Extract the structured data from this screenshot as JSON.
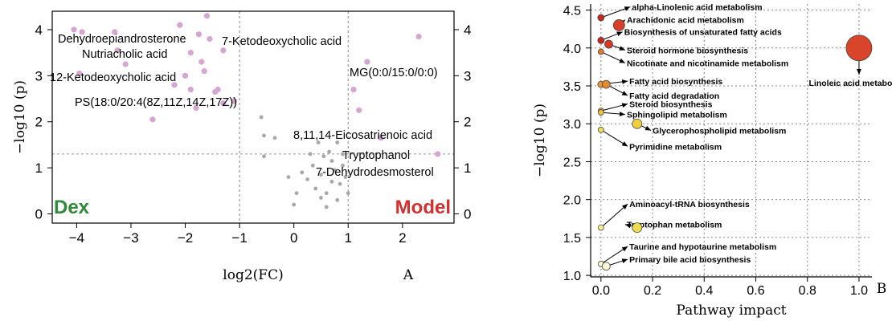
{
  "chart_data": [
    {
      "panel": "A",
      "type": "scatter",
      "xlabel": "log2(FC)",
      "ylabel": "−log10 (p)",
      "xlim": [
        -4.45,
        2.95
      ],
      "ylim": [
        -0.2,
        4.4
      ],
      "xticks": [
        -4,
        -3,
        -2,
        -1,
        0,
        1,
        2
      ],
      "yticks_left": [
        0,
        1,
        2,
        3,
        4
      ],
      "yticks_right": [
        0,
        1,
        2,
        3,
        4
      ],
      "vlines": [
        -1,
        1
      ],
      "hline": 1.3,
      "group_labels": [
        {
          "text": "Dex",
          "color": "#2e8b3a",
          "side": "left"
        },
        {
          "text": "Model",
          "color": "#d32f2f",
          "side": "right"
        }
      ],
      "significant_points": [
        [
          -4.05,
          4.0
        ],
        [
          -3.9,
          3.95
        ],
        [
          -3.3,
          3.95
        ],
        [
          -3.25,
          3.55
        ],
        [
          -3.95,
          3.05
        ],
        [
          -3.1,
          3.25
        ],
        [
          -2.6,
          2.05
        ],
        [
          -2.2,
          2.8
        ],
        [
          -2.0,
          3.0
        ],
        [
          -1.9,
          2.7
        ],
        [
          -1.9,
          3.5
        ],
        [
          -1.75,
          3.9
        ],
        [
          -1.6,
          4.3
        ],
        [
          -1.55,
          3.8
        ],
        [
          -1.65,
          3.1
        ],
        [
          -1.7,
          3.3
        ],
        [
          -1.45,
          2.65
        ],
        [
          -1.4,
          2.7
        ],
        [
          -1.3,
          2.4
        ],
        [
          -1.1,
          2.45
        ],
        [
          -1.8,
          2.3
        ],
        [
          -2.1,
          4.1
        ],
        [
          1.35,
          3.3
        ],
        [
          1.1,
          2.7
        ],
        [
          1.2,
          2.25
        ],
        [
          1.6,
          1.65
        ],
        [
          2.65,
          1.3
        ],
        [
          2.3,
          3.85
        ],
        [
          -1.3,
          3.55
        ]
      ],
      "nonsignificant_points": [
        [
          -0.6,
          2.1
        ],
        [
          -0.55,
          1.7
        ],
        [
          -0.35,
          1.65
        ],
        [
          -0.55,
          1.25
        ],
        [
          -0.1,
          0.8
        ],
        [
          0.0,
          0.2
        ],
        [
          0.05,
          0.45
        ],
        [
          0.15,
          0.9
        ],
        [
          0.25,
          0.75
        ],
        [
          0.35,
          1.05
        ],
        [
          0.4,
          0.55
        ],
        [
          0.5,
          0.85
        ],
        [
          0.55,
          1.25
        ],
        [
          0.6,
          0.45
        ],
        [
          0.65,
          1.35
        ],
        [
          0.7,
          0.7
        ],
        [
          0.75,
          0.95
        ],
        [
          0.8,
          0.3
        ],
        [
          0.8,
          1.55
        ],
        [
          0.85,
          0.65
        ],
        [
          0.9,
          1.05
        ],
        [
          0.95,
          0.8
        ],
        [
          1.0,
          0.45
        ],
        [
          0.6,
          0.15
        ],
        [
          0.3,
          1.3
        ],
        [
          0.45,
          1.55
        ],
        [
          0.7,
          1.15
        ],
        [
          0.9,
          1.3
        ],
        [
          0.5,
          0.35
        ]
      ],
      "annotations": [
        {
          "text": "Dehydroepiandrosterone",
          "x": -4.05,
          "y": 4.0
        },
        {
          "text": "Nutriacholic acid",
          "x": -3.25,
          "y": 3.55
        },
        {
          "text": "7-Ketodeoxycholic acid",
          "x": -1.6,
          "y": 4.3
        },
        {
          "text": "12-Ketodeoxycholic acid",
          "x": -3.95,
          "y": 3.05
        },
        {
          "text": "PS(18:0/20:4(8Z,11Z,14Z,17Z))",
          "x": -1.1,
          "y": 2.45
        },
        {
          "text": "MG(0:0/15:0/0:0)",
          "x": 2.3,
          "y": 3.85
        },
        {
          "text": "8,11,14-Eicosatrienoic acid",
          "x": 1.2,
          "y": 2.25
        },
        {
          "text": "Tryptophanol",
          "x": 1.6,
          "y": 1.65
        },
        {
          "text": "7-Dehydrodesmosterol",
          "x": 2.65,
          "y": 1.3
        }
      ],
      "panel_label": "A"
    },
    {
      "panel": "B",
      "type": "scatter",
      "xlabel": "Pathway impact",
      "ylabel": "−log10 (p)",
      "xlim": [
        -0.04,
        1.05
      ],
      "ylim": [
        0.98,
        4.58
      ],
      "xticks": [
        0.0,
        0.2,
        0.4,
        0.6,
        0.8,
        1.0
      ],
      "yticks": [
        1.0,
        1.5,
        2.0,
        2.5,
        3.0,
        3.5,
        4.0,
        4.5
      ],
      "grid": true,
      "points": [
        {
          "name": "alpha-Linolenic acid metabolism",
          "x": 0.0,
          "y": 4.4,
          "size": 4,
          "color": "#c62820",
          "label_x": 0.12,
          "label_y": 4.5
        },
        {
          "name": "Arachidonic acid metabolism",
          "x": 0.07,
          "y": 4.3,
          "size": 7,
          "color": "#d8402a",
          "label_x": 0.1,
          "label_y": 4.33
        },
        {
          "name": "Biosynthesis of unsaturated fatty acids",
          "x": 0.0,
          "y": 4.1,
          "size": 4,
          "color": "#c62820",
          "label_x": 0.09,
          "label_y": 4.17
        },
        {
          "name": "Steroid hormone biosynthesis",
          "x": 0.03,
          "y": 4.05,
          "size": 5,
          "color": "#d63a24",
          "label_x": 0.1,
          "label_y": 3.93
        },
        {
          "name": "Nicotinate and nicotinamide metabolism",
          "x": 0.0,
          "y": 3.95,
          "size": 3.5,
          "color": "#e07a2c",
          "label_x": 0.1,
          "label_y": 3.76
        },
        {
          "name": "Linoleic acid metabolism",
          "x": 1.0,
          "y": 4.0,
          "size": 16,
          "color": "#d8452a",
          "label_x": 0.9,
          "label_y": 3.5
        },
        {
          "name": "Fatty acid biosynthesis",
          "x": 0.0,
          "y": 3.52,
          "size": 4,
          "color": "#e6983a",
          "label_x": 0.11,
          "label_y": 3.52
        },
        {
          "name": "Fatty acid degradation",
          "x": 0.02,
          "y": 3.52,
          "size": 5,
          "color": "#e08a32",
          "label_x": 0.11,
          "label_y": 3.33
        },
        {
          "name": "Steroid biosynthesis",
          "x": 0.0,
          "y": 3.17,
          "size": 3.5,
          "color": "#f0c040",
          "label_x": 0.11,
          "label_y": 3.22
        },
        {
          "name": "Sphingolipid metabolism",
          "x": 0.0,
          "y": 3.15,
          "size": 3.5,
          "color": "#f0c040",
          "label_x": 0.1,
          "label_y": 3.08
        },
        {
          "name": "Glycerophospholipid metabolism",
          "x": 0.14,
          "y": 3.0,
          "size": 6,
          "color": "#f0d040",
          "label_x": 0.2,
          "label_y": 2.87
        },
        {
          "name": "Pyrimidine metabolism",
          "x": 0.0,
          "y": 2.92,
          "size": 3.5,
          "color": "#f2dc50",
          "label_x": 0.11,
          "label_y": 2.66
        },
        {
          "name": "Aminoacyl-tRNA biosynthesis",
          "x": 0.0,
          "y": 1.63,
          "size": 3.5,
          "color": "#f6ec90",
          "label_x": 0.11,
          "label_y": 1.9
        },
        {
          "name": "Tryptophan metabolism",
          "x": 0.14,
          "y": 1.63,
          "size": 6,
          "color": "#eedc50",
          "label_x": 0.1,
          "label_y": 1.63
        },
        {
          "name": "Taurine and hypotaurine metabolism",
          "x": 0.0,
          "y": 1.15,
          "size": 3.5,
          "color": "#fdf8d8",
          "label_x": 0.11,
          "label_y": 1.34
        },
        {
          "name": "Primary bile acid biosynthesis",
          "x": 0.02,
          "y": 1.12,
          "size": 5,
          "color": "#fdf8d8",
          "label_x": 0.11,
          "label_y": 1.17
        }
      ],
      "panel_label": "B"
    }
  ]
}
